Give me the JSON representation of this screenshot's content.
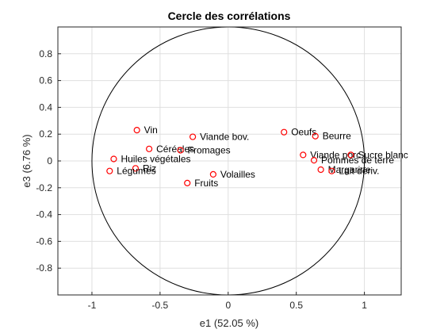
{
  "chart_data": {
    "type": "scatter",
    "title": "Cercle des corrélations",
    "xlabel": "e1 (52.05 %)",
    "ylabel": "e3 (6.76 %)",
    "xlim": [
      -1.25,
      1.27
    ],
    "ylim": [
      -1.0,
      1.0
    ],
    "xticks": [
      -1,
      -0.5,
      0,
      0.5,
      1
    ],
    "xtick_labels": [
      "-1",
      "-0.5",
      "0",
      "0.5",
      "1"
    ],
    "yticks": [
      -0.8,
      -0.6,
      -0.4,
      -0.2,
      0,
      0.2,
      0.4,
      0.6,
      0.8
    ],
    "ytick_labels": [
      "-0.8",
      "-0.6",
      "-0.4",
      "-0.2",
      "0",
      "0.2",
      "0.4",
      "0.6",
      "0.8"
    ],
    "grid": true,
    "unit_circle": true,
    "marker_color": "#ff0000",
    "points": [
      {
        "label": "Vin",
        "x": -0.67,
        "y": 0.23
      },
      {
        "label": "Viande bov.",
        "x": -0.26,
        "y": 0.18
      },
      {
        "label": "Céréales",
        "x": -0.58,
        "y": 0.09
      },
      {
        "label": "Fromages",
        "x": -0.35,
        "y": 0.08
      },
      {
        "label": "Huiles végétales",
        "x": -0.84,
        "y": 0.015
      },
      {
        "label": "Riz",
        "x": -0.68,
        "y": -0.055
      },
      {
        "label": "Légumes",
        "x": -0.87,
        "y": -0.075
      },
      {
        "label": "Fruits",
        "x": -0.3,
        "y": -0.165
      },
      {
        "label": "Volailles",
        "x": -0.11,
        "y": -0.1
      },
      {
        "label": "Oeufs",
        "x": 0.41,
        "y": 0.215
      },
      {
        "label": "Beurre",
        "x": 0.64,
        "y": 0.185
      },
      {
        "label": "Viande porc",
        "x": 0.55,
        "y": 0.045
      },
      {
        "label": "Sucre blanc",
        "x": 0.9,
        "y": 0.045
      },
      {
        "label": "Pommes de terre",
        "x": 0.63,
        "y": 0.005
      },
      {
        "label": "Margarine",
        "x": 0.68,
        "y": -0.065
      },
      {
        "label": "Lait dériv.",
        "x": 0.76,
        "y": -0.075
      }
    ]
  }
}
